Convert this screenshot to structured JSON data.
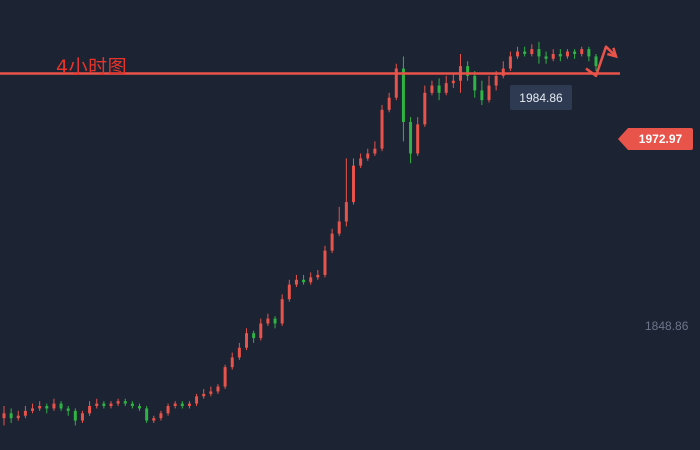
{
  "chart_data": {
    "type": "candlestick",
    "title": "4小时图",
    "price_labels": {
      "high": "1984.86",
      "current": "1972.97",
      "axis": "1848.86"
    },
    "y_range": [
      1822,
      1995
    ],
    "horizontal_line": 1972.97,
    "grid": false,
    "colors": {
      "background": "#1c2333",
      "up": "#e8534a",
      "down": "#2fb344",
      "line": "#e8534a",
      "title": "#e8342a"
    },
    "candles": [
      [
        1831,
        1833,
        1836,
        1828
      ],
      [
        1833,
        1831,
        1835,
        1829
      ],
      [
        1831,
        1832,
        1834,
        1830
      ],
      [
        1832,
        1834,
        1836,
        1831
      ],
      [
        1834,
        1835,
        1837,
        1833
      ],
      [
        1835,
        1836,
        1838,
        1834
      ],
      [
        1836,
        1835,
        1837,
        1833
      ],
      [
        1835,
        1837,
        1839,
        1834
      ],
      [
        1837,
        1835,
        1838,
        1834
      ],
      [
        1835,
        1834,
        1836,
        1832
      ],
      [
        1834,
        1830,
        1835,
        1828
      ],
      [
        1830,
        1833,
        1834,
        1829
      ],
      [
        1833,
        1836,
        1838,
        1832
      ],
      [
        1836,
        1837,
        1839,
        1835
      ],
      [
        1837,
        1836,
        1838,
        1835
      ],
      [
        1836,
        1837,
        1838,
        1835
      ],
      [
        1837,
        1838,
        1839,
        1836
      ],
      [
        1838,
        1837,
        1839,
        1836
      ],
      [
        1837,
        1836,
        1838,
        1835
      ],
      [
        1836,
        1835,
        1837,
        1834
      ],
      [
        1835,
        1830,
        1836,
        1829
      ],
      [
        1830,
        1831,
        1832,
        1829
      ],
      [
        1831,
        1833,
        1834,
        1830
      ],
      [
        1833,
        1836,
        1837,
        1832
      ],
      [
        1836,
        1837,
        1838,
        1835
      ],
      [
        1837,
        1836,
        1838,
        1835
      ],
      [
        1836,
        1837,
        1838,
        1835
      ],
      [
        1837,
        1840,
        1841,
        1836
      ],
      [
        1840,
        1841,
        1843,
        1839
      ],
      [
        1841,
        1842,
        1844,
        1840
      ],
      [
        1842,
        1844,
        1845,
        1841
      ],
      [
        1844,
        1852,
        1853,
        1843
      ],
      [
        1852,
        1856,
        1858,
        1851
      ],
      [
        1856,
        1860,
        1862,
        1855
      ],
      [
        1860,
        1866,
        1868,
        1859
      ],
      [
        1866,
        1864,
        1867,
        1862
      ],
      [
        1864,
        1870,
        1872,
        1863
      ],
      [
        1870,
        1872,
        1874,
        1869
      ],
      [
        1872,
        1870,
        1873,
        1868
      ],
      [
        1870,
        1880,
        1882,
        1869
      ],
      [
        1880,
        1886,
        1888,
        1879
      ],
      [
        1886,
        1888,
        1890,
        1885
      ],
      [
        1888,
        1887,
        1890,
        1886
      ],
      [
        1887,
        1889,
        1891,
        1886
      ],
      [
        1889,
        1890,
        1892,
        1888
      ],
      [
        1890,
        1900,
        1902,
        1889
      ],
      [
        1900,
        1907,
        1909,
        1899
      ],
      [
        1907,
        1912,
        1918,
        1906
      ],
      [
        1912,
        1920,
        1938,
        1910
      ],
      [
        1920,
        1935,
        1938,
        1919
      ],
      [
        1935,
        1938,
        1940,
        1934
      ],
      [
        1938,
        1940,
        1942,
        1937
      ],
      [
        1940,
        1942,
        1945,
        1939
      ],
      [
        1942,
        1958,
        1960,
        1941
      ],
      [
        1958,
        1963,
        1965,
        1957
      ],
      [
        1963,
        1975,
        1977,
        1962
      ],
      [
        1975,
        1953,
        1980,
        1945
      ],
      [
        1953,
        1940,
        1955,
        1936
      ],
      [
        1940,
        1952,
        1955,
        1939
      ],
      [
        1952,
        1965,
        1968,
        1951
      ],
      [
        1965,
        1968,
        1970,
        1964
      ],
      [
        1968,
        1965,
        1971,
        1962
      ],
      [
        1965,
        1969,
        1972,
        1964
      ],
      [
        1969,
        1970,
        1973,
        1967
      ],
      [
        1970,
        1976,
        1981,
        1965
      ],
      [
        1976,
        1972,
        1978,
        1970
      ],
      [
        1972,
        1966,
        1974,
        1963
      ],
      [
        1966,
        1962,
        1970,
        1960
      ],
      [
        1962,
        1968,
        1972,
        1961
      ],
      [
        1968,
        1972,
        1974,
        1966
      ],
      [
        1972,
        1975,
        1978,
        1971
      ],
      [
        1975,
        1980,
        1982,
        1974
      ],
      [
        1980,
        1982,
        1984,
        1979
      ],
      [
        1982,
        1981,
        1984,
        1980
      ],
      [
        1981,
        1983,
        1985,
        1980
      ],
      [
        1983,
        1980,
        1986,
        1977
      ],
      [
        1980,
        1979,
        1982,
        1977
      ],
      [
        1979,
        1981,
        1983,
        1978
      ],
      [
        1981,
        1980,
        1983,
        1978
      ],
      [
        1980,
        1982,
        1983,
        1979
      ],
      [
        1982,
        1981,
        1983,
        1979
      ],
      [
        1981,
        1983,
        1984,
        1980
      ],
      [
        1983,
        1980,
        1984,
        1978
      ],
      [
        1980,
        1976,
        1981,
        1974
      ]
    ],
    "forecast_path": [
      [
        -1,
        1975
      ],
      [
        0,
        1972
      ],
      [
        1,
        1984
      ],
      [
        2,
        1980
      ]
    ]
  }
}
